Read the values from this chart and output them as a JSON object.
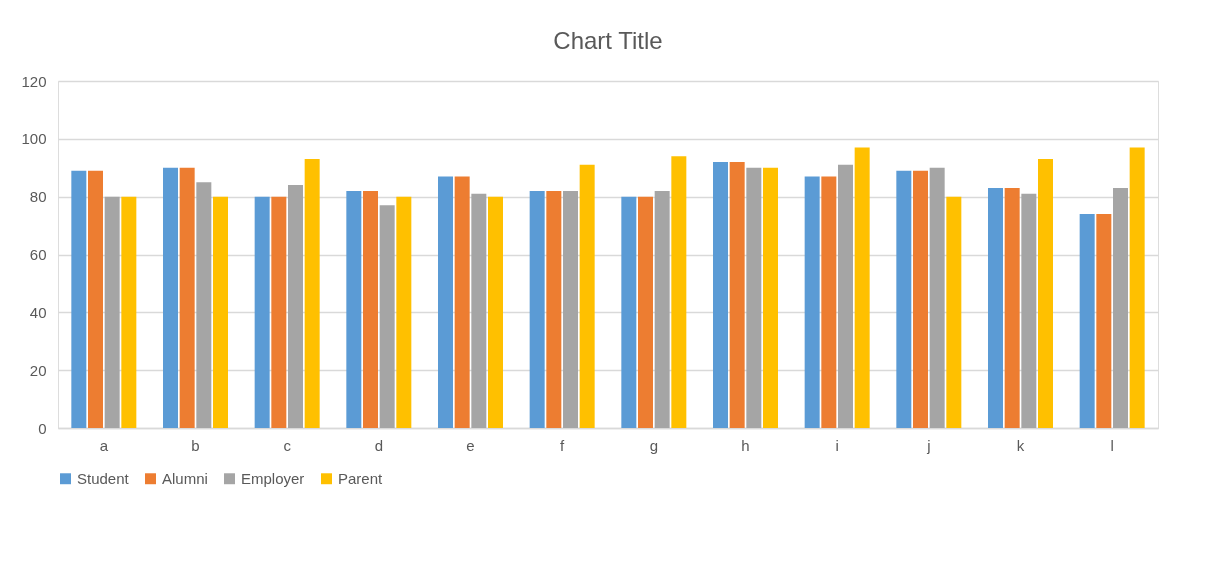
{
  "chart_data": {
    "type": "bar",
    "title": "Chart Title",
    "categories": [
      "a",
      "b",
      "c",
      "d",
      "e",
      "f",
      "g",
      "h",
      "i",
      "j",
      "k",
      "l"
    ],
    "series": [
      {
        "name": "Student",
        "color": "#5b9bd5",
        "values": [
          89,
          90,
          80,
          82,
          87,
          82,
          80,
          92,
          87,
          89,
          83,
          74
        ]
      },
      {
        "name": "Alumni",
        "color": "#ed7d31",
        "values": [
          89,
          90,
          80,
          82,
          87,
          82,
          80,
          92,
          87,
          89,
          83,
          74
        ]
      },
      {
        "name": "Employer",
        "color": "#a5a5a5",
        "values": [
          80,
          85,
          84,
          77,
          81,
          82,
          82,
          90,
          91,
          90,
          81,
          83
        ]
      },
      {
        "name": "Parent",
        "color": "#ffc000",
        "values": [
          80,
          80,
          93,
          80,
          80,
          91,
          94,
          90,
          97,
          80,
          93,
          97
        ]
      }
    ],
    "ylim": [
      0,
      120
    ],
    "yticks": [
      0,
      20,
      40,
      60,
      80,
      100,
      120
    ],
    "grid": "y",
    "legend": "bottom"
  }
}
